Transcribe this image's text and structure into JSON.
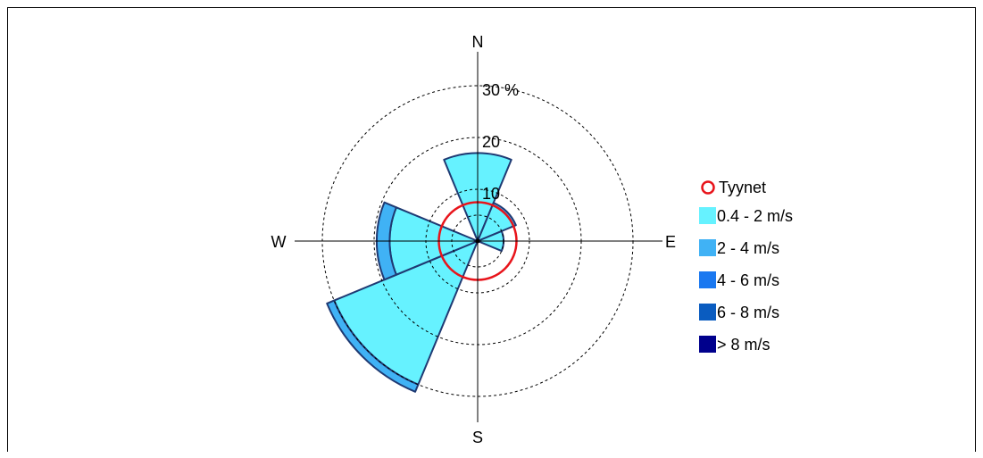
{
  "chart_data": {
    "type": "windrose",
    "directions": [
      "N",
      "NE",
      "E",
      "SE",
      "S",
      "SW",
      "W",
      "NW"
    ],
    "compass_labels": {
      "north": "N",
      "east": "E",
      "south": "S",
      "west": "W"
    },
    "radial_ticks": [
      "10",
      "20",
      "30 %"
    ],
    "radial_values": [
      10,
      20,
      30
    ],
    "r_max": 30,
    "calm": {
      "name": "Tyynet",
      "value": 7.5,
      "color": "#e8141b"
    },
    "series": [
      {
        "name": "0.4 - 2 m/s",
        "color": "#66f2ff",
        "values": [
          17.0,
          7.5,
          5.0,
          0,
          0,
          30.0,
          17.0,
          0
        ]
      },
      {
        "name": "2 - 4 m/s",
        "color": "#40b2f5",
        "values": [
          0,
          0.5,
          0,
          0,
          0,
          1.5,
          2.5,
          0
        ]
      },
      {
        "name": "4 - 6 m/s",
        "color": "#1a78f0",
        "values": [
          0,
          0,
          0,
          0,
          0,
          0,
          0,
          0
        ]
      },
      {
        "name": "6 - 8 m/s",
        "color": "#0a5cc0",
        "values": [
          0,
          0,
          0,
          0,
          0,
          0,
          0,
          0
        ]
      },
      {
        "name": "> 8 m/s",
        "color": "#00008c",
        "values": [
          0,
          0,
          0,
          0,
          0,
          0,
          0,
          0
        ]
      }
    ],
    "wedge_outline_color": "#1f3a73"
  }
}
